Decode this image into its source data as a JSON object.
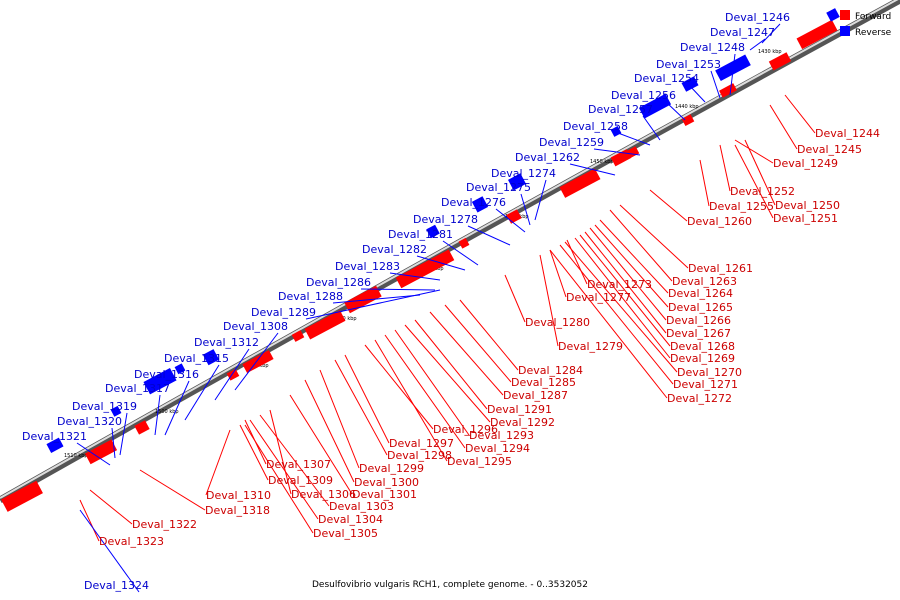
{
  "caption": "Desulfovibrio vulgaris RCH1, complete genome. - 0..3532052",
  "legend": [
    {
      "label": "Forward",
      "color": "#ff0000"
    },
    {
      "label": "Reverse",
      "color": "#0000ff"
    }
  ],
  "colors": {
    "forward": "#ff0000",
    "reverse": "#0000ff",
    "backbone": "#808080"
  },
  "ticks": [
    "1430 kbp",
    "1440 kbp",
    "1450 kbp",
    "1460 kbp",
    "1470 kbp",
    "1480 kbp",
    "1490 kbp",
    "1500 kbp",
    "1510 kbp"
  ],
  "forward_labels": [
    "Deval_1244",
    "Deval_1245",
    "Deval_1249",
    "Deval_1252",
    "Deval_1250",
    "Deval_1255",
    "Deval_1251",
    "Deval_1260",
    "Deval_1261",
    "Deval_1263",
    "Deval_1273",
    "Deval_1264",
    "Deval_1277",
    "Deval_1265",
    "Deval_1266",
    "Deval_1267",
    "Deval_1280",
    "Deval_1268",
    "Deval_1279",
    "Deval_1269",
    "Deval_1270",
    "Deval_1284",
    "Deval_1271",
    "Deval_1285",
    "Deval_1272",
    "Deval_1287",
    "Deval_1291",
    "Deval_1292",
    "Deval_1296",
    "Deval_1293",
    "Deval_1297",
    "Deval_1294",
    "Deval_1298",
    "Deval_1295",
    "Deval_1307",
    "Deval_1299",
    "Deval_1309",
    "Deval_1300",
    "Deval_1310",
    "Deval_1306",
    "Deval_1301",
    "Deval_1318",
    "Deval_1303",
    "Deval_1304",
    "Deval_1322",
    "Deval_1305",
    "Deval_1323"
  ],
  "reverse_labels": [
    "Deval_1246",
    "Deval_1247",
    "Deval_1248",
    "Deval_1253",
    "Deval_1254",
    "Deval_1256",
    "Deval_1257",
    "Deval_1258",
    "Deval_1259",
    "Deval_1262",
    "Deval_1274",
    "Deval_1275",
    "Deval_1276",
    "Deval_1278",
    "Deval_1281",
    "Deval_1282",
    "Deval_1283",
    "Deval_1286",
    "Deval_1288",
    "Deval_1289",
    "Deval_1308",
    "Deval_1312",
    "Deval_1315",
    "Deval_1316",
    "Deval_1317",
    "Deval_1319",
    "Deval_1320",
    "Deval_1321",
    "Deval_1324"
  ]
}
